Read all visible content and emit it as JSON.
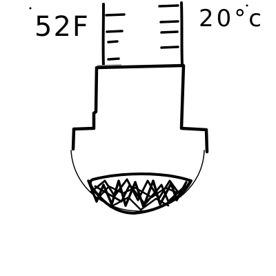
{
  "labels": {
    "left_reading": "52F",
    "right_reading": "20°c"
  },
  "colors": {
    "background": "#ffffff",
    "ink": "#000000"
  }
}
